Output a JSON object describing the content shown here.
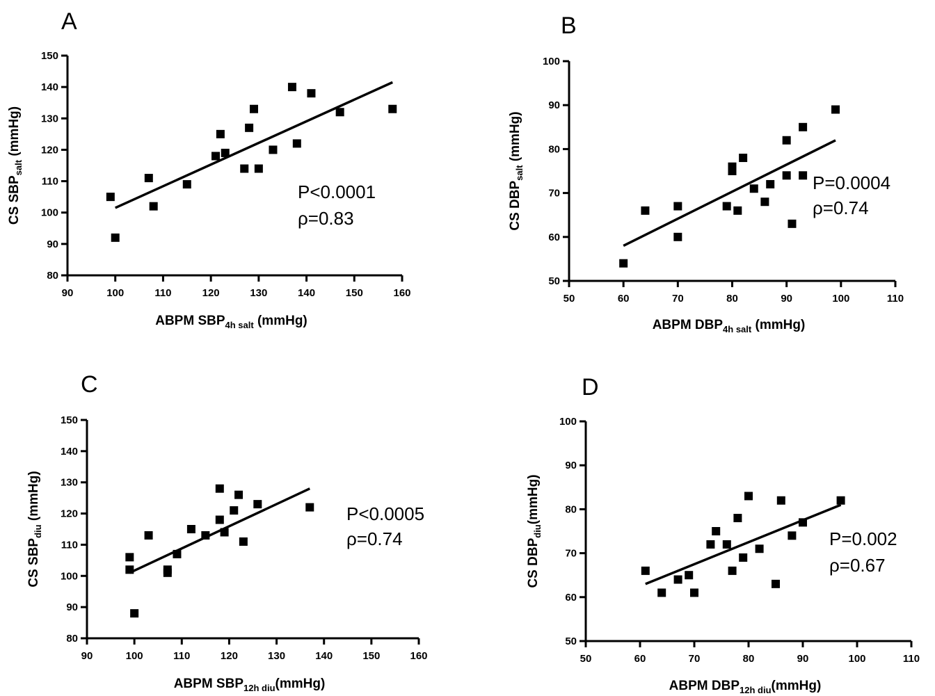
{
  "chart_data": [
    {
      "type": "scatter",
      "panel": "A",
      "xlabel": {
        "main": "ABPM SBP",
        "sub": "4h salt",
        "unit": " (mmHg)"
      },
      "ylabel": {
        "main": "CS SBP",
        "sub": "salt",
        "unit": " (mmHg)"
      },
      "xlim": [
        90,
        160
      ],
      "xticks": [
        90,
        100,
        110,
        120,
        130,
        140,
        150,
        160
      ],
      "ylim": [
        80,
        150
      ],
      "yticks": [
        80,
        90,
        100,
        110,
        120,
        130,
        140,
        150
      ],
      "points": [
        [
          99,
          105
        ],
        [
          100,
          92
        ],
        [
          107,
          111
        ],
        [
          108,
          102
        ],
        [
          115,
          109
        ],
        [
          121,
          118
        ],
        [
          122,
          125
        ],
        [
          123,
          119
        ],
        [
          127,
          114
        ],
        [
          128,
          127
        ],
        [
          129,
          133
        ],
        [
          130,
          114
        ],
        [
          133,
          120
        ],
        [
          137,
          140
        ],
        [
          138,
          122
        ],
        [
          141,
          138
        ],
        [
          147,
          132
        ],
        [
          158,
          133
        ]
      ],
      "regression": [
        [
          100,
          101.5
        ],
        [
          158,
          141.5
        ]
      ],
      "stats": [
        "P<0.0001",
        "ρ=0.83"
      ]
    },
    {
      "type": "scatter",
      "panel": "B",
      "xlabel": {
        "main": "ABPM DBP",
        "sub": "4h salt",
        "unit": " (mmHg)"
      },
      "ylabel": {
        "main": "CS DBP",
        "sub": "salt",
        "unit": " (mmHg)"
      },
      "xlim": [
        50,
        110
      ],
      "xticks": [
        50,
        60,
        70,
        80,
        90,
        100,
        110
      ],
      "ylim": [
        50,
        100
      ],
      "yticks": [
        50,
        60,
        70,
        80,
        90,
        100
      ],
      "points": [
        [
          60,
          54
        ],
        [
          64,
          66
        ],
        [
          70,
          67
        ],
        [
          70,
          60
        ],
        [
          79,
          67
        ],
        [
          80,
          75
        ],
        [
          80,
          76
        ],
        [
          81,
          66
        ],
        [
          82,
          78
        ],
        [
          84,
          71
        ],
        [
          86,
          68
        ],
        [
          87,
          72
        ],
        [
          90,
          74
        ],
        [
          90,
          82
        ],
        [
          91,
          63
        ],
        [
          93,
          85
        ],
        [
          93,
          74
        ],
        [
          99,
          89
        ]
      ],
      "regression": [
        [
          60,
          58
        ],
        [
          99,
          82
        ]
      ],
      "stats": [
        "P=0.0004",
        "ρ=0.74"
      ]
    },
    {
      "type": "scatter",
      "panel": "C",
      "xlabel": {
        "main": "ABPM SBP",
        "sub": "12h diu",
        "unit": "(mmHg)"
      },
      "ylabel": {
        "main": "CS SBP",
        "sub": "diu",
        "unit": " (mmHg)"
      },
      "xlim": [
        90,
        160
      ],
      "xticks": [
        90,
        100,
        110,
        120,
        130,
        140,
        150,
        160
      ],
      "ylim": [
        80,
        150
      ],
      "yticks": [
        80,
        90,
        100,
        110,
        120,
        130,
        140,
        150
      ],
      "points": [
        [
          99,
          106
        ],
        [
          99,
          102
        ],
        [
          100,
          88
        ],
        [
          103,
          113
        ],
        [
          107,
          102
        ],
        [
          107,
          101
        ],
        [
          109,
          107
        ],
        [
          112,
          115
        ],
        [
          115,
          113
        ],
        [
          118,
          128
        ],
        [
          118,
          118
        ],
        [
          119,
          114
        ],
        [
          121,
          121
        ],
        [
          122,
          126
        ],
        [
          123,
          111
        ],
        [
          126,
          123
        ],
        [
          137,
          122
        ]
      ],
      "regression": [
        [
          99,
          101
        ],
        [
          137,
          128
        ]
      ],
      "stats": [
        "P<0.0005",
        "ρ=0.74"
      ]
    },
    {
      "type": "scatter",
      "panel": "D",
      "xlabel": {
        "main": "ABPM DBP",
        "sub": "12h diu",
        "unit": "(mmHg)"
      },
      "ylabel": {
        "main": "CS DBP",
        "sub": "diu",
        "unit": "(mmHg)"
      },
      "xlim": [
        50,
        110
      ],
      "xticks": [
        50,
        60,
        70,
        80,
        90,
        100,
        110
      ],
      "ylim": [
        50,
        100
      ],
      "yticks": [
        50,
        60,
        70,
        80,
        90,
        100
      ],
      "points": [
        [
          61,
          66
        ],
        [
          64,
          61
        ],
        [
          67,
          64
        ],
        [
          69,
          65
        ],
        [
          70,
          61
        ],
        [
          73,
          72
        ],
        [
          74,
          75
        ],
        [
          76,
          72
        ],
        [
          77,
          66
        ],
        [
          78,
          78
        ],
        [
          79,
          69
        ],
        [
          80,
          83
        ],
        [
          82,
          71
        ],
        [
          85,
          63
        ],
        [
          86,
          82
        ],
        [
          88,
          74
        ],
        [
          90,
          77
        ],
        [
          97,
          82
        ]
      ],
      "regression": [
        [
          61,
          63
        ],
        [
          97,
          81
        ]
      ],
      "stats": [
        "P=0.002",
        "ρ=0.67"
      ]
    }
  ]
}
